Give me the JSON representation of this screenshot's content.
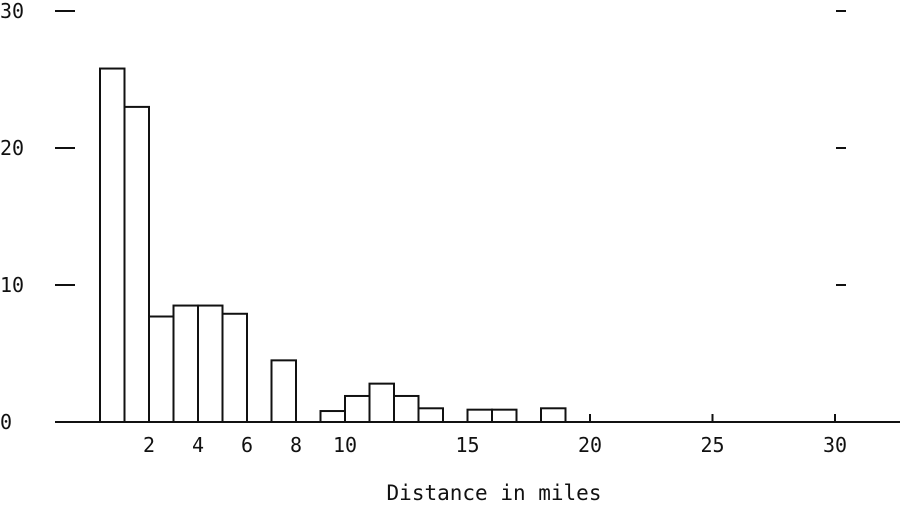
{
  "chart_data": {
    "type": "bar",
    "title": "",
    "xlabel": "Distance in miles",
    "ylabel": "",
    "xlim": [
      0,
      33
    ],
    "ylim": [
      0,
      30
    ],
    "grid": false,
    "x_ticks": [
      2,
      4,
      6,
      8,
      10,
      15,
      20,
      25,
      30
    ],
    "y_ticks": [
      0,
      10,
      20,
      30
    ],
    "bars": [
      {
        "x0": 0,
        "x1": 1,
        "value": 25.8
      },
      {
        "x0": 1,
        "x1": 2,
        "value": 23.0
      },
      {
        "x0": 2,
        "x1": 3,
        "value": 7.7
      },
      {
        "x0": 3,
        "x1": 4,
        "value": 8.5
      },
      {
        "x0": 4,
        "x1": 5,
        "value": 8.5
      },
      {
        "x0": 5,
        "x1": 6,
        "value": 7.9
      },
      {
        "x0": 7,
        "x1": 8,
        "value": 4.5
      },
      {
        "x0": 9,
        "x1": 10,
        "value": 0.8
      },
      {
        "x0": 10,
        "x1": 11,
        "value": 1.9
      },
      {
        "x0": 11,
        "x1": 12,
        "value": 2.8
      },
      {
        "x0": 12,
        "x1": 13,
        "value": 1.9
      },
      {
        "x0": 13,
        "x1": 14,
        "value": 1.0
      },
      {
        "x0": 15,
        "x1": 16,
        "value": 0.9
      },
      {
        "x0": 16,
        "x1": 17,
        "value": 0.9
      },
      {
        "x0": 18,
        "x1": 19,
        "value": 1.0
      }
    ]
  }
}
